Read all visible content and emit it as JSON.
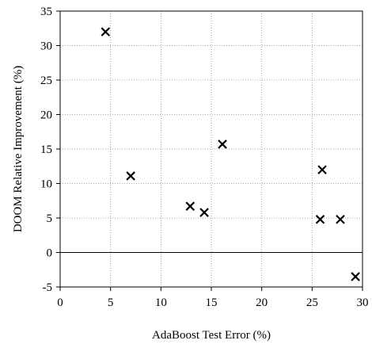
{
  "chart_data": {
    "type": "scatter",
    "title": "",
    "xlabel": "AdaBoost Test Error (%)",
    "ylabel": "DOOM Relative Improvement (%)",
    "xlim": [
      0,
      30
    ],
    "ylim": [
      -5,
      35
    ],
    "xticks": [
      "0",
      "5",
      "10",
      "15",
      "20",
      "25",
      "30"
    ],
    "yticks": [
      "-5",
      "0",
      "5",
      "10",
      "15",
      "20",
      "25",
      "30",
      "35"
    ],
    "grid": true,
    "marker": "x",
    "points": [
      {
        "x": 4.5,
        "y": 32.0
      },
      {
        "x": 7.0,
        "y": 11.1
      },
      {
        "x": 12.9,
        "y": 6.7
      },
      {
        "x": 14.3,
        "y": 5.8
      },
      {
        "x": 16.1,
        "y": 15.7
      },
      {
        "x": 25.8,
        "y": 4.8
      },
      {
        "x": 26.0,
        "y": 12.0
      },
      {
        "x": 27.8,
        "y": 4.8
      },
      {
        "x": 29.3,
        "y": -3.5
      }
    ]
  }
}
